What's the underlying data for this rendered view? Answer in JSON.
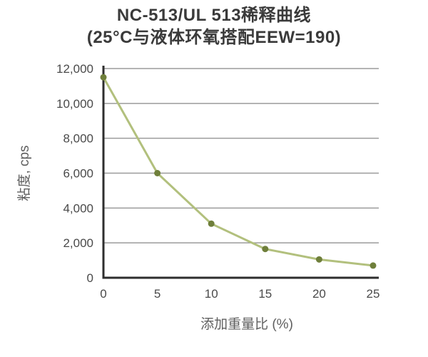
{
  "title": {
    "line1": "NC-513/UL 513稀释曲线",
    "line2": "(25°C与液体环氧搭配EEW=190)"
  },
  "chart_data": {
    "type": "line",
    "title": "NC-513/UL 513稀释曲线 (25°C与液体环氧搭配EEW=190)",
    "x": [
      0,
      5,
      10,
      15,
      20,
      25
    ],
    "values": [
      11500,
      6000,
      3100,
      1650,
      1050,
      700
    ],
    "xlabel": "添加重量比 (%)",
    "ylabel": "粘度, cps",
    "xlim": [
      0,
      25
    ],
    "ylim": [
      0,
      12000
    ],
    "x_ticks": [
      0,
      5,
      10,
      15,
      20,
      25
    ],
    "y_ticks": [
      0,
      2000,
      4000,
      6000,
      8000,
      10000,
      12000
    ],
    "grid": "horizontal",
    "legend": "none",
    "colors": {
      "line": "#b2c07d",
      "marker": "#6f7f3b",
      "grid": "#9b9b9b",
      "axis": "#2e2e2e",
      "tick_text": "#4a4a4a",
      "axis_label_text": "#5f5f5f",
      "title_text": "#3a3a3a",
      "background": "#ffffff"
    }
  }
}
